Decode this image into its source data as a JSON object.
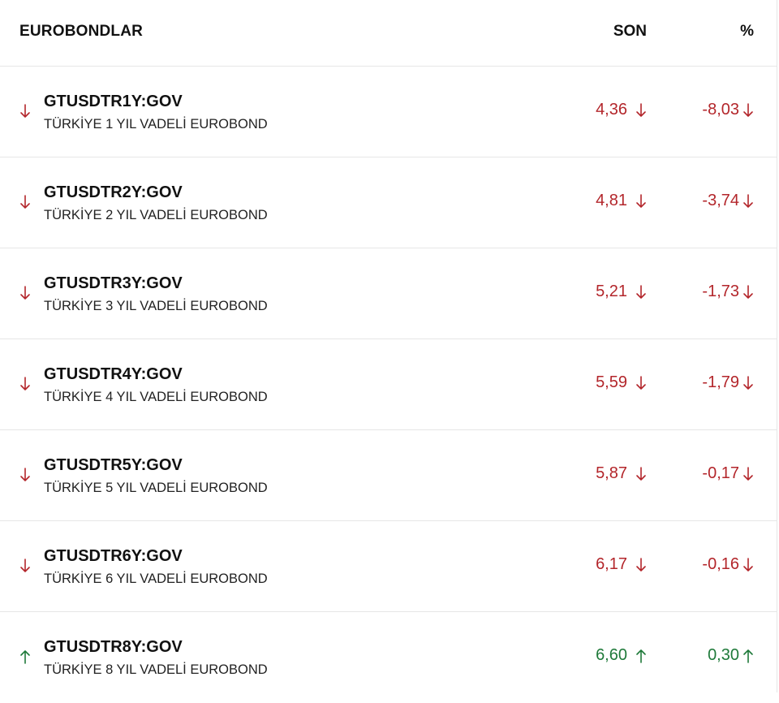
{
  "header": {
    "title": "EUROBONDLAR",
    "last_label": "SON",
    "change_label": "%"
  },
  "colors": {
    "down": "#b3262b",
    "up": "#1f7a3a"
  },
  "rows": [
    {
      "symbol": "GTUSDTR1Y:GOV",
      "description": "TÜRKİYE 1 YIL VADELİ EUROBOND",
      "last": "4,36",
      "change": "-8,03",
      "direction": "down"
    },
    {
      "symbol": "GTUSDTR2Y:GOV",
      "description": "TÜRKİYE 2 YIL VADELİ EUROBOND",
      "last": "4,81",
      "change": "-3,74",
      "direction": "down"
    },
    {
      "symbol": "GTUSDTR3Y:GOV",
      "description": "TÜRKİYE 3 YIL VADELİ EUROBOND",
      "last": "5,21",
      "change": "-1,73",
      "direction": "down"
    },
    {
      "symbol": "GTUSDTR4Y:GOV",
      "description": "TÜRKİYE 4 YIL VADELİ EUROBOND",
      "last": "5,59",
      "change": "-1,79",
      "direction": "down"
    },
    {
      "symbol": "GTUSDTR5Y:GOV",
      "description": "TÜRKİYE 5 YIL VADELİ EUROBOND",
      "last": "5,87",
      "change": "-0,17",
      "direction": "down"
    },
    {
      "symbol": "GTUSDTR6Y:GOV",
      "description": "TÜRKİYE 6 YIL VADELİ EUROBOND",
      "last": "6,17",
      "change": "-0,16",
      "direction": "down"
    },
    {
      "symbol": "GTUSDTR8Y:GOV",
      "description": "TÜRKİYE 8 YIL VADELİ EUROBOND",
      "last": "6,60",
      "change": "0,30",
      "direction": "up"
    }
  ]
}
